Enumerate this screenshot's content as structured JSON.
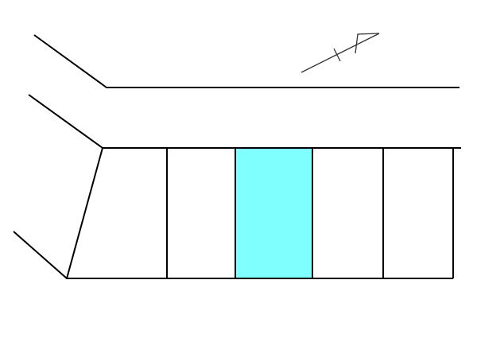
{
  "map": {
    "line_color": "#000000",
    "highlight_color": "#80FFFF",
    "background_color": "#FFFFFF",
    "highlighted_lot_index": 1,
    "lot_count": 5,
    "north_arrow_icon": "north-arrow-icon"
  }
}
